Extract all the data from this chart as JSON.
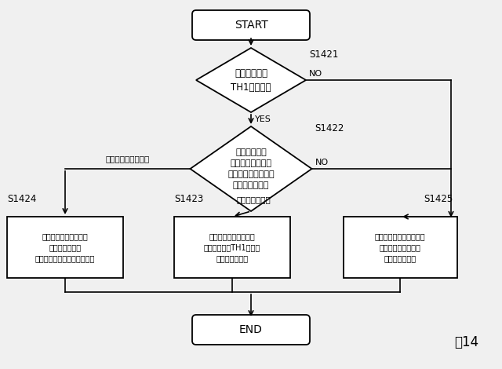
{
  "fig_label": "図14",
  "background_color": "#f0f0f0",
  "start_text": "START",
  "end_text": "END",
  "diamond1_text": "最大利用率が\nTH1未満か？",
  "diamond1_label": "S1421",
  "diamond2_text": "業務形態上、\nフリーアドレス、\nセミフリーアドレス\n提案できるか？",
  "diamond2_label": "S1422",
  "box1_text": "上記の考えに基づき、\n検討を進める。\n最大利用率は適宜設定する。",
  "box1_label": "S1424",
  "box2_text": "上記の考えに基づき、\n最大利用率をTH1として\n検討を進める。",
  "box2_label": "S1423",
  "box3_text": "社員数より席数を算定、\n席タイプを選定して\n検討を進める。",
  "box3_label": "S1425",
  "yes_label": "YES",
  "no_label": "NO",
  "semi_label": "セミフリーアドレス",
  "free_label": "フリーアドレス",
  "line_color": "#000000",
  "text_color": "#000000",
  "font_size_main": 8.5,
  "font_size_box": 7.2,
  "font_size_label": 8.0,
  "font_size_arrow_label": 7.5,
  "font_size_fig": 12
}
